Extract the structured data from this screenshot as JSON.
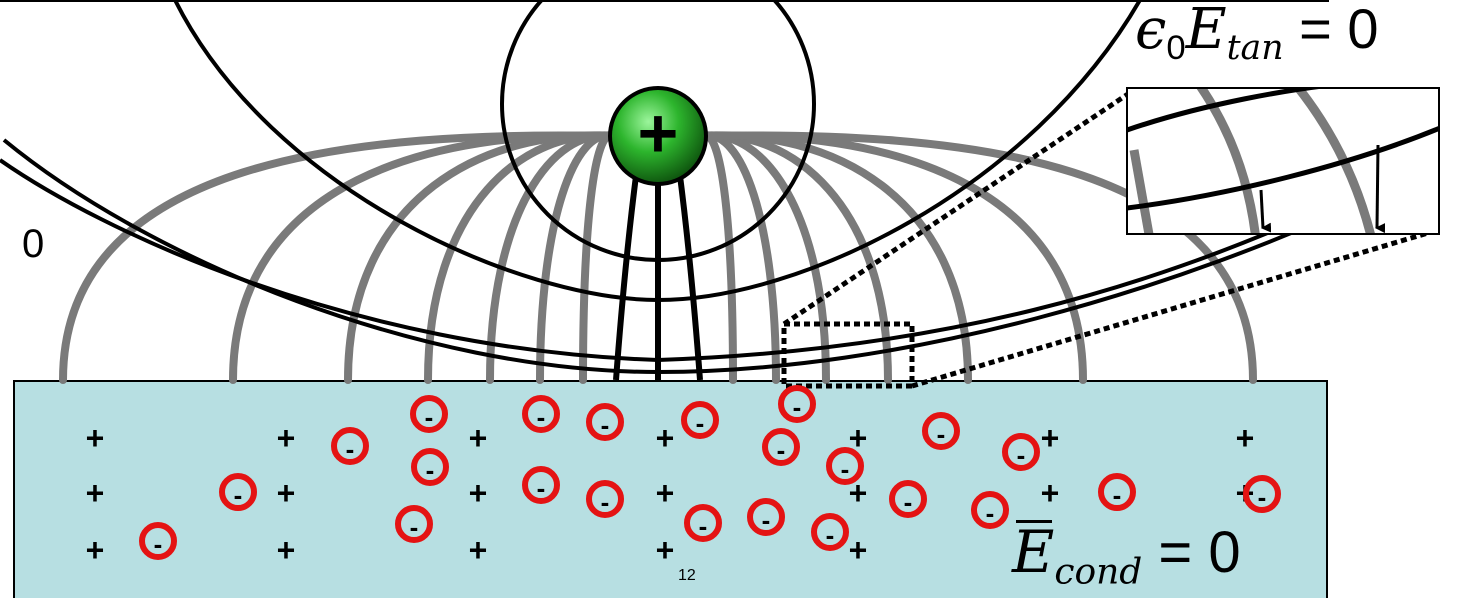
{
  "labels": {
    "tangent_equation": {
      "epsilon": "ϵ",
      "epsilon_sub": "0",
      "field": "E",
      "field_sub": "tan",
      "equals": "=",
      "rhs": "0"
    },
    "conductor_equation": {
      "field": "E",
      "field_sub": "cond",
      "equals": "=",
      "rhs": "0"
    },
    "left_partial": "0",
    "page_number": "12"
  },
  "symbols": {
    "point_charge": "+",
    "conductor_positive": "+",
    "induced_negative": "-"
  },
  "colors": {
    "conductor_fill": "#b7dfe2",
    "field_lines": "#7a7a7a",
    "equipotentials": "#000000",
    "negative_ring": "#e41313",
    "charge_green": "#22a022"
  }
}
